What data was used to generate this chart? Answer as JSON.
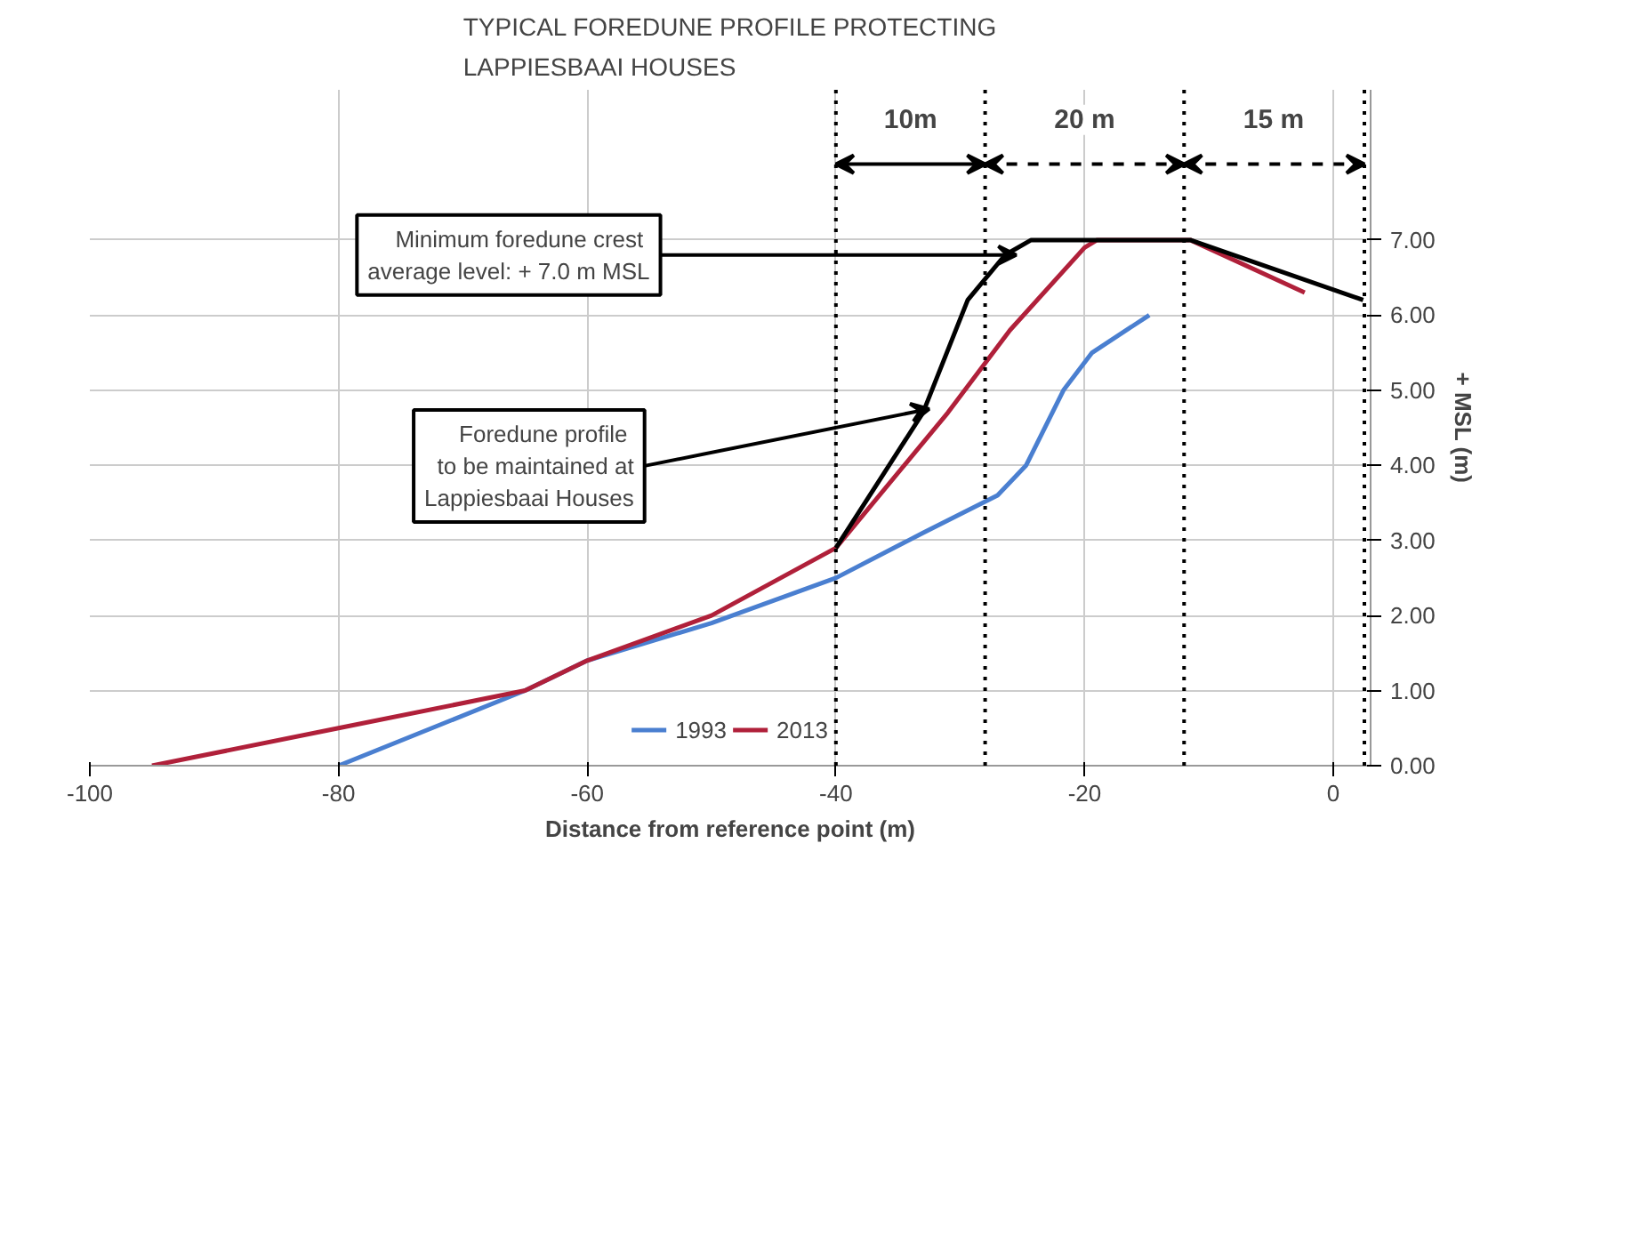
{
  "chart_data": {
    "type": "line",
    "title": "TYPICAL FOREDUNE PROFILE PROTECTING\nLAPPIESBAAI HOUSES",
    "xlabel": "Distance from reference point (m)",
    "ylabel": "+ MSL (m)",
    "xlim": [
      -100,
      3
    ],
    "ylim": [
      0,
      9
    ],
    "xticks": [
      -100,
      -80,
      -60,
      -40,
      -20,
      0
    ],
    "yticks": [
      {
        "value": 0,
        "label": "0.00"
      },
      {
        "value": 1,
        "label": "1.00"
      },
      {
        "value": 2,
        "label": "2.00"
      },
      {
        "value": 3,
        "label": "3.00"
      },
      {
        "value": 4,
        "label": "4.00"
      },
      {
        "value": 5,
        "label": "5.00"
      },
      {
        "value": 6,
        "label": "6.00"
      },
      {
        "value": 7,
        "label": "7.00"
      }
    ],
    "grid": true,
    "legend": "bottom",
    "line_style": "solid",
    "series": [
      {
        "name": "1993",
        "color": "#4a7fd0",
        "x": [
          -80,
          -65,
          -60,
          -50,
          -40,
          -33,
          -27,
          -24.7,
          -21.7,
          -19.4,
          -14.8
        ],
        "values": [
          0,
          1.0,
          1.4,
          1.9,
          2.5,
          3.1,
          3.6,
          4.0,
          5.0,
          5.5,
          6.0
        ]
      },
      {
        "name": "2013",
        "color": "#b0203a",
        "x": [
          -95,
          -80,
          -65,
          -60,
          -50,
          -40,
          -31,
          -26,
          -20,
          -19,
          -11.5,
          -2.3
        ],
        "values": [
          0,
          0.5,
          1.0,
          1.4,
          2.0,
          2.9,
          4.7,
          5.8,
          6.9,
          7.0,
          7.0,
          6.3
        ]
      },
      {
        "color": "#000000",
        "x": [
          -40,
          -33,
          -29.4,
          -26.4,
          -24.3,
          -11.5,
          2.4
        ],
        "values": [
          2.9,
          4.7,
          6.2,
          6.8,
          7.0,
          7.0,
          6.2
        ]
      }
    ],
    "ref_lines": [
      {
        "axis": "x",
        "value": -40,
        "line_style": "dotted",
        "color": "#000000"
      },
      {
        "axis": "x",
        "value": -28,
        "line_style": "dotted",
        "color": "#000000"
      },
      {
        "axis": "x",
        "value": -12,
        "line_style": "dotted",
        "color": "#000000"
      },
      {
        "axis": "x",
        "value": 2.5,
        "line_style": "dotted",
        "color": "#000000"
      }
    ],
    "annotations": [
      {
        "text": "10m",
        "x": -34,
        "y": 8.6
      },
      {
        "text": "20 m",
        "x": -20,
        "y": 8.6
      },
      {
        "text": "15 m",
        "x": -4.8,
        "y": 8.6
      },
      {
        "text": "Minimum  foredune crest\naverage level: + 7.0 m MSL",
        "x": -25.5,
        "y": 6.8
      },
      {
        "text": "Foredune  profile\nto be maintained at\nLappiesbaai Houses",
        "x": -32.5,
        "y": 4.75
      }
    ]
  }
}
